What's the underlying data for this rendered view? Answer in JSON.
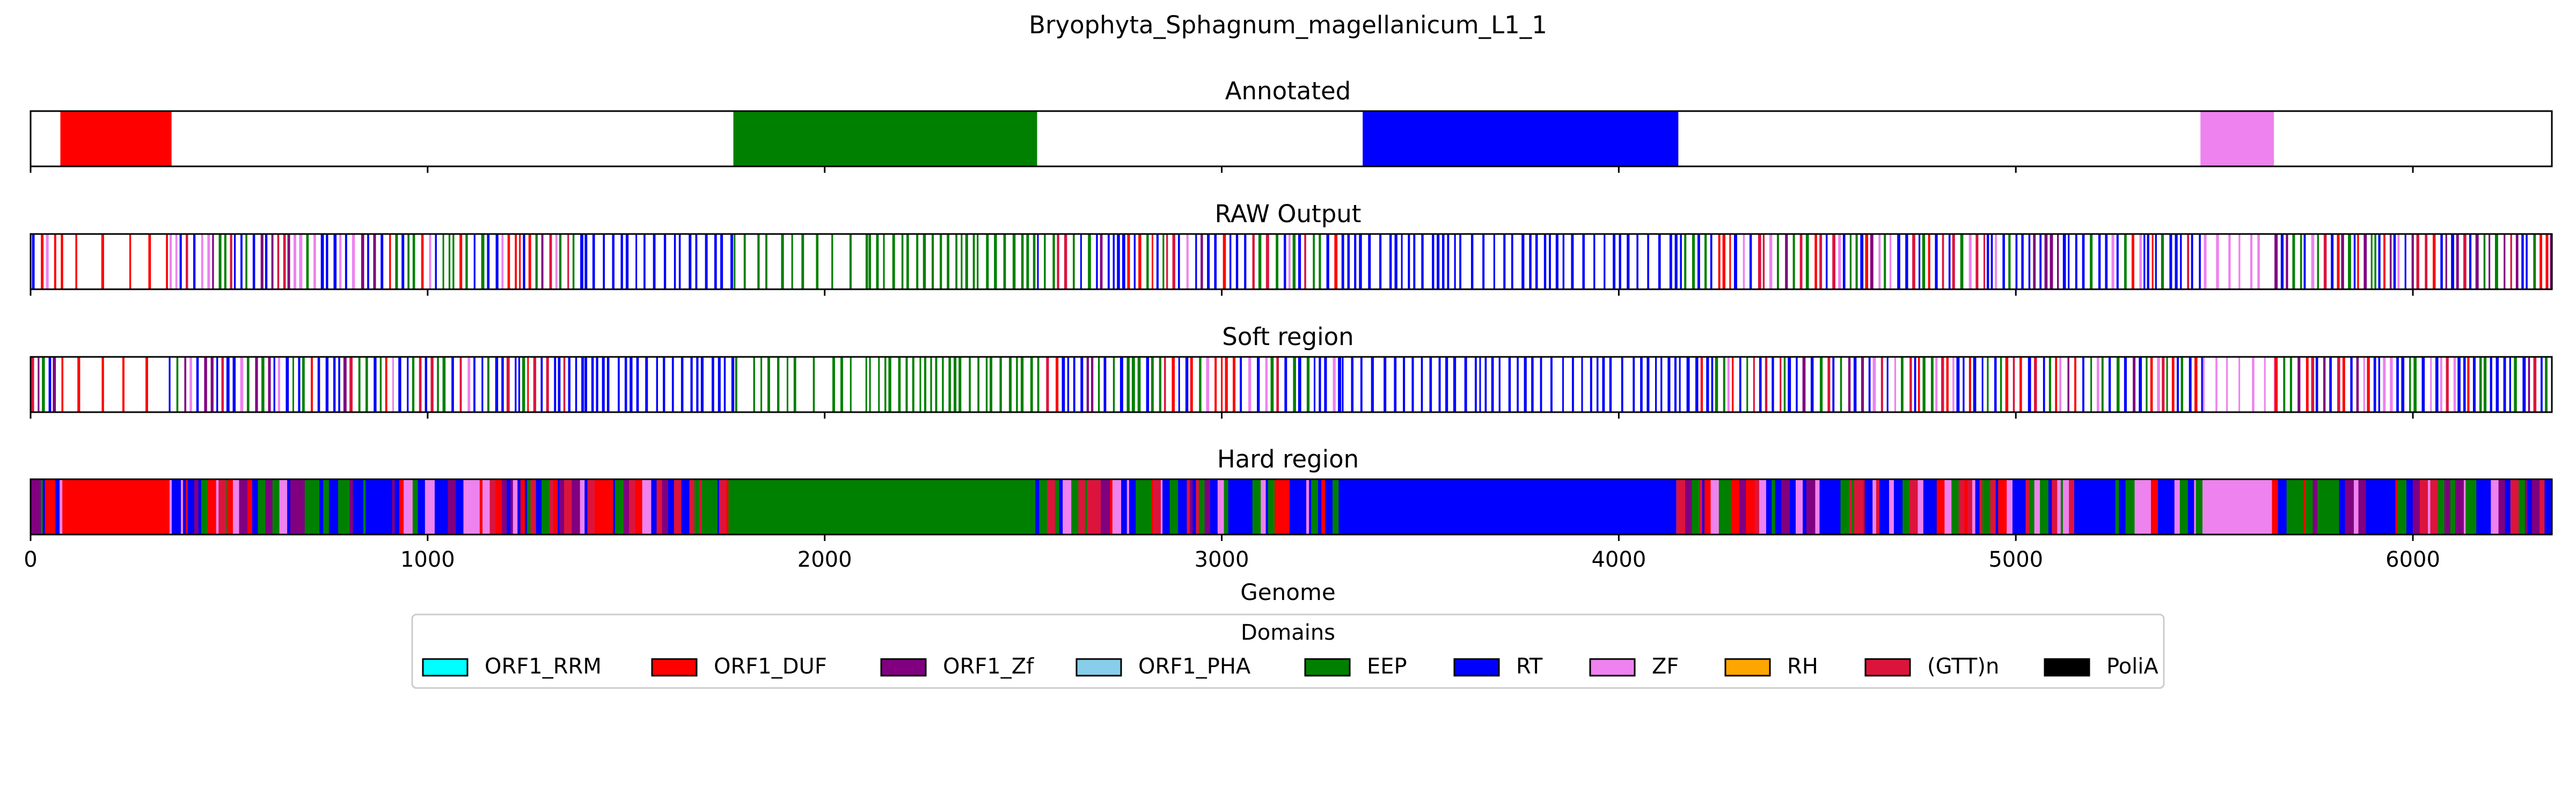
{
  "title": "Bryophyta_Sphagnum_magellanicum_L1_1",
  "colors": {
    "ORF1_RRM": "#00ffff",
    "ORF1_DUF": "#ff0000",
    "ORF1_Zf": "#800080",
    "ORF1_PHA": "#87ceeb",
    "EEP": "#008000",
    "RT": "#0000ff",
    "ZF": "#ee82ee",
    "RH": "#ffa500",
    "(GTT)n": "#dc143c",
    "PoliA": "#000000"
  },
  "chart_data": {
    "type": "genome-track",
    "title": "Bryophyta_Sphagnum_magellanicum_L1_1",
    "xlabel": "Genome",
    "xlim": [
      0,
      6350
    ],
    "xticks": [
      0,
      1000,
      2000,
      3000,
      4000,
      5000,
      6000
    ],
    "legend": {
      "title": "Domains",
      "placement": "bottom-center",
      "entries": [
        "ORF1_RRM",
        "ORF1_DUF",
        "ORF1_Zf",
        "ORF1_PHA",
        "EEP",
        "RT",
        "ZF",
        "RH",
        "(GTT)n",
        "PoliA"
      ]
    },
    "tracks": [
      {
        "name": "Annotated",
        "style": "blocks",
        "segments": [
          {
            "start": 75,
            "end": 355,
            "domain": "ORF1_DUF"
          },
          {
            "start": 1770,
            "end": 2535,
            "domain": "EEP"
          },
          {
            "start": 3355,
            "end": 4150,
            "domain": "RT"
          },
          {
            "start": 5465,
            "end": 5650,
            "domain": "ZF"
          }
        ]
      },
      {
        "name": "RAW Output",
        "style": "ticks",
        "segments": [
          {
            "start": 0,
            "end": 75,
            "domain": "mixed",
            "density": 0.55
          },
          {
            "start": 75,
            "end": 345,
            "domain": "ORF1_DUF",
            "density": 0.12
          },
          {
            "start": 345,
            "end": 1390,
            "domain": "mixed",
            "density": 0.55
          },
          {
            "start": 1390,
            "end": 1770,
            "domain": "RT",
            "density": 0.4
          },
          {
            "start": 1770,
            "end": 2110,
            "domain": "EEP",
            "density": 0.18
          },
          {
            "start": 2110,
            "end": 2530,
            "domain": "EEP",
            "density": 0.45
          },
          {
            "start": 2530,
            "end": 3300,
            "domain": "mixed",
            "density": 0.5
          },
          {
            "start": 3300,
            "end": 4150,
            "domain": "RT",
            "density": 0.35
          },
          {
            "start": 4150,
            "end": 5470,
            "domain": "mixed",
            "density": 0.55
          },
          {
            "start": 5470,
            "end": 5650,
            "domain": "ZF",
            "density": 0.2
          },
          {
            "start": 5650,
            "end": 6350,
            "domain": "mixed",
            "density": 0.6
          }
        ]
      },
      {
        "name": "Soft region",
        "style": "ticks",
        "segments": [
          {
            "start": 0,
            "end": 75,
            "domain": "mixed",
            "density": 0.55
          },
          {
            "start": 75,
            "end": 345,
            "domain": "ORF1_DUF",
            "density": 0.12
          },
          {
            "start": 345,
            "end": 1390,
            "domain": "mixed",
            "density": 0.55
          },
          {
            "start": 1390,
            "end": 1770,
            "domain": "RT",
            "density": 0.4
          },
          {
            "start": 1770,
            "end": 2110,
            "domain": "EEP",
            "density": 0.18
          },
          {
            "start": 2110,
            "end": 2530,
            "domain": "EEP",
            "density": 0.45
          },
          {
            "start": 2530,
            "end": 3300,
            "domain": "mixed",
            "density": 0.5
          },
          {
            "start": 3300,
            "end": 4150,
            "domain": "RT",
            "density": 0.35
          },
          {
            "start": 4150,
            "end": 5470,
            "domain": "mixed",
            "density": 0.55
          },
          {
            "start": 5470,
            "end": 5650,
            "domain": "ZF",
            "density": 0.2
          },
          {
            "start": 5650,
            "end": 6350,
            "domain": "mixed",
            "density": 0.6
          }
        ]
      },
      {
        "name": "Hard region",
        "style": "filled",
        "grid": true,
        "segments": [
          {
            "start": 0,
            "end": 80,
            "domain": "mixed",
            "density": 1.0
          },
          {
            "start": 80,
            "end": 350,
            "domain": "ORF1_DUF",
            "density": 1.0
          },
          {
            "start": 350,
            "end": 1770,
            "domain": "mixed",
            "density": 1.0
          },
          {
            "start": 1770,
            "end": 2530,
            "domain": "EEP",
            "density": 1.0
          },
          {
            "start": 2530,
            "end": 3325,
            "domain": "mixed",
            "density": 1.0
          },
          {
            "start": 3325,
            "end": 4145,
            "domain": "RT",
            "density": 1.0
          },
          {
            "start": 4145,
            "end": 5470,
            "domain": "mixed",
            "density": 1.0
          },
          {
            "start": 5470,
            "end": 5645,
            "domain": "ZF",
            "density": 1.0
          },
          {
            "start": 5645,
            "end": 6350,
            "domain": "mixed",
            "density": 1.0
          }
        ]
      }
    ]
  }
}
